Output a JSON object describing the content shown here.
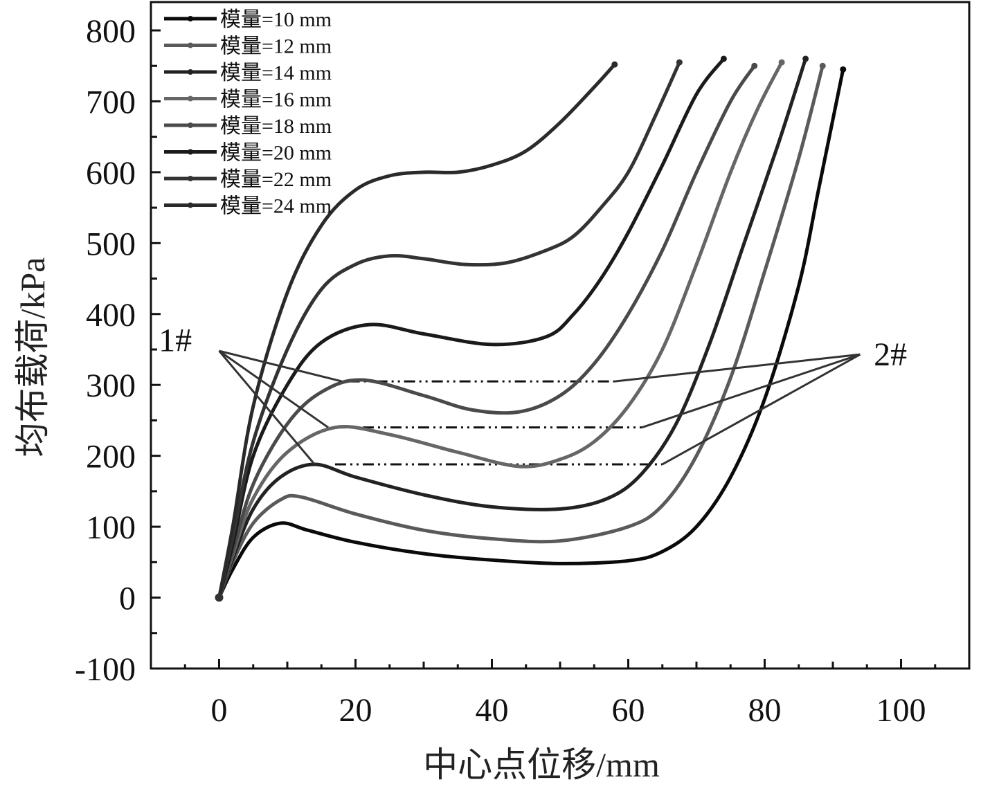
{
  "chart_data": {
    "type": "line",
    "title": "",
    "xlabel": "中心点位移/mm",
    "ylabel": "均布载荷/kPa",
    "xlim": [
      -10,
      110
    ],
    "ylim": [
      -100,
      840
    ],
    "xticks": [
      0,
      20,
      40,
      60,
      80,
      100
    ],
    "yticks": [
      -100,
      0,
      100,
      200,
      300,
      400,
      500,
      600,
      700,
      800
    ],
    "grid": false,
    "legend_position": "top-left",
    "series": [
      {
        "name": "模量=10 mm",
        "color": "#0a0a0a",
        "x": [
          0,
          2,
          5,
          9,
          13,
          20,
          30,
          40,
          50,
          60,
          65,
          70,
          75,
          80,
          85,
          88,
          91.5
        ],
        "y": [
          0,
          40,
          85,
          105,
          95,
          78,
          62,
          53,
          48,
          52,
          65,
          100,
          170,
          280,
          440,
          580,
          745
        ]
      },
      {
        "name": "模量=12 mm",
        "color": "#5a5a5a",
        "x": [
          0,
          2,
          5,
          9,
          12,
          20,
          30,
          40,
          50,
          60,
          65,
          70,
          75,
          80,
          85,
          88.5
        ],
        "y": [
          0,
          50,
          105,
          138,
          142,
          118,
          95,
          83,
          80,
          100,
          130,
          200,
          310,
          460,
          620,
          750
        ]
      },
      {
        "name": "模量=14 mm",
        "color": "#222222",
        "x": [
          0,
          2,
          5,
          9,
          14,
          20,
          30,
          40,
          50,
          57,
          62,
          67,
          72,
          77,
          82,
          86
        ],
        "y": [
          0,
          55,
          125,
          170,
          188,
          170,
          145,
          128,
          125,
          140,
          175,
          245,
          360,
          500,
          640,
          760
        ]
      },
      {
        "name": "模量=16 mm",
        "color": "#666666",
        "x": [
          0,
          2,
          5,
          10,
          17,
          25,
          35,
          44,
          50,
          55,
          60,
          65,
          70,
          75,
          79,
          82.5
        ],
        "y": [
          0,
          60,
          140,
          205,
          240,
          230,
          205,
          185,
          195,
          220,
          270,
          350,
          470,
          600,
          690,
          755
        ]
      },
      {
        "name": "模量=18 mm",
        "color": "#4a4a4a",
        "x": [
          0,
          2,
          5,
          10,
          15,
          21,
          30,
          37,
          44,
          50,
          55,
          60,
          65,
          70,
          75,
          78.5
        ],
        "y": [
          0,
          65,
          160,
          245,
          290,
          307,
          285,
          265,
          262,
          285,
          330,
          400,
          490,
          600,
          700,
          750
        ]
      },
      {
        "name": "模量=20 mm",
        "color": "#1a1a1a",
        "x": [
          0,
          2,
          5,
          10,
          15,
          22,
          30,
          40,
          48,
          52,
          56,
          60,
          65,
          70,
          74
        ],
        "y": [
          0,
          75,
          200,
          300,
          360,
          385,
          372,
          357,
          368,
          400,
          450,
          515,
          610,
          710,
          760
        ]
      },
      {
        "name": "模量=22 mm",
        "color": "#333333",
        "x": [
          0,
          2,
          5,
          10,
          15,
          20,
          25,
          30,
          36,
          42,
          48,
          52,
          56,
          60,
          64,
          67.5
        ],
        "y": [
          0,
          85,
          220,
          350,
          435,
          470,
          482,
          478,
          470,
          472,
          490,
          510,
          550,
          600,
          680,
          755
        ]
      },
      {
        "name": "模量=24 mm",
        "color": "#2a2a2a",
        "x": [
          0,
          2,
          5,
          10,
          15,
          20,
          25,
          30,
          35,
          40,
          45,
          50,
          55,
          58
        ],
        "y": [
          0,
          100,
          270,
          430,
          525,
          575,
          595,
          600,
          600,
          610,
          630,
          670,
          720,
          752
        ]
      }
    ],
    "reference_lines": [
      {
        "x": [
          17,
          65
        ],
        "y": [
          188,
          188
        ]
      },
      {
        "x": [
          17,
          62
        ],
        "y": [
          240,
          240
        ]
      },
      {
        "x": [
          19,
          58
        ],
        "y": [
          305,
          305
        ]
      }
    ],
    "annotations": [
      {
        "text": "1#",
        "x": -4,
        "y": 363,
        "pointer_origin": [
          0,
          348
        ],
        "pointer_targets": [
          [
            14,
            188
          ],
          [
            16,
            240
          ],
          [
            18,
            305
          ]
        ]
      },
      {
        "text": "2#",
        "x": 96,
        "y": 343,
        "pointer_origin": [
          94,
          343
        ],
        "pointer_targets": [
          [
            65,
            188
          ],
          [
            62,
            240
          ],
          [
            58,
            305
          ]
        ]
      }
    ]
  }
}
